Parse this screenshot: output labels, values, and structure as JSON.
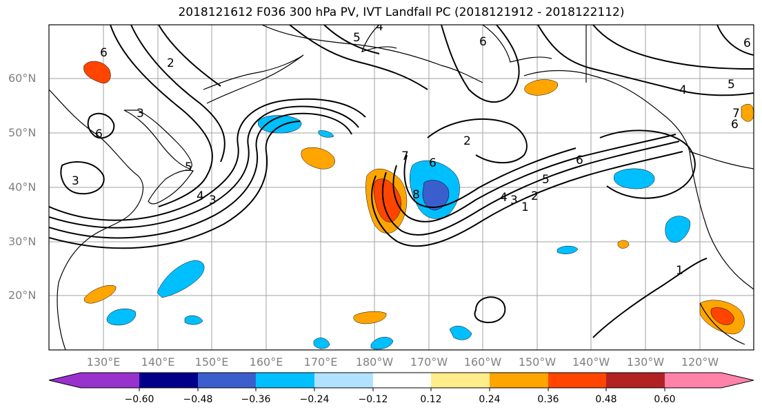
{
  "title": "2018121612 F036 300 hPa PV, IVT Landfall PC (2018121912 - 2018122112)",
  "map": {
    "lat_labels": [
      "60°N",
      "50°N",
      "40°N",
      "30°N",
      "20°N"
    ],
    "lon_labels": [
      "130°E",
      "140°E",
      "150°E",
      "160°E",
      "170°E",
      "180°W",
      "170°W",
      "160°W",
      "150°W",
      "140°W",
      "130°W",
      "120°W"
    ],
    "contour_labels": [
      "6",
      "2",
      "3",
      "6",
      "3",
      "5",
      "4",
      "3",
      "5",
      "4",
      "6",
      "8",
      "6",
      "2",
      "7",
      "6",
      "5",
      "2",
      "1",
      "4",
      "3",
      "1",
      "4",
      "5",
      "6",
      "6",
      "7"
    ]
  },
  "colorbar": {
    "tick_labels": [
      "−0.60",
      "−0.48",
      "−0.36",
      "−0.24",
      "−0.12",
      "0.12",
      "0.24",
      "0.36",
      "0.48",
      "0.60"
    ],
    "colors": [
      "#9932cc",
      "#00008b",
      "#3a5fcd",
      "#00bfff",
      "#b0e2ff",
      "#ffffff",
      "#ffec8b",
      "#ffa500",
      "#ff4500",
      "#b22222",
      "#ff82ab"
    ]
  }
}
